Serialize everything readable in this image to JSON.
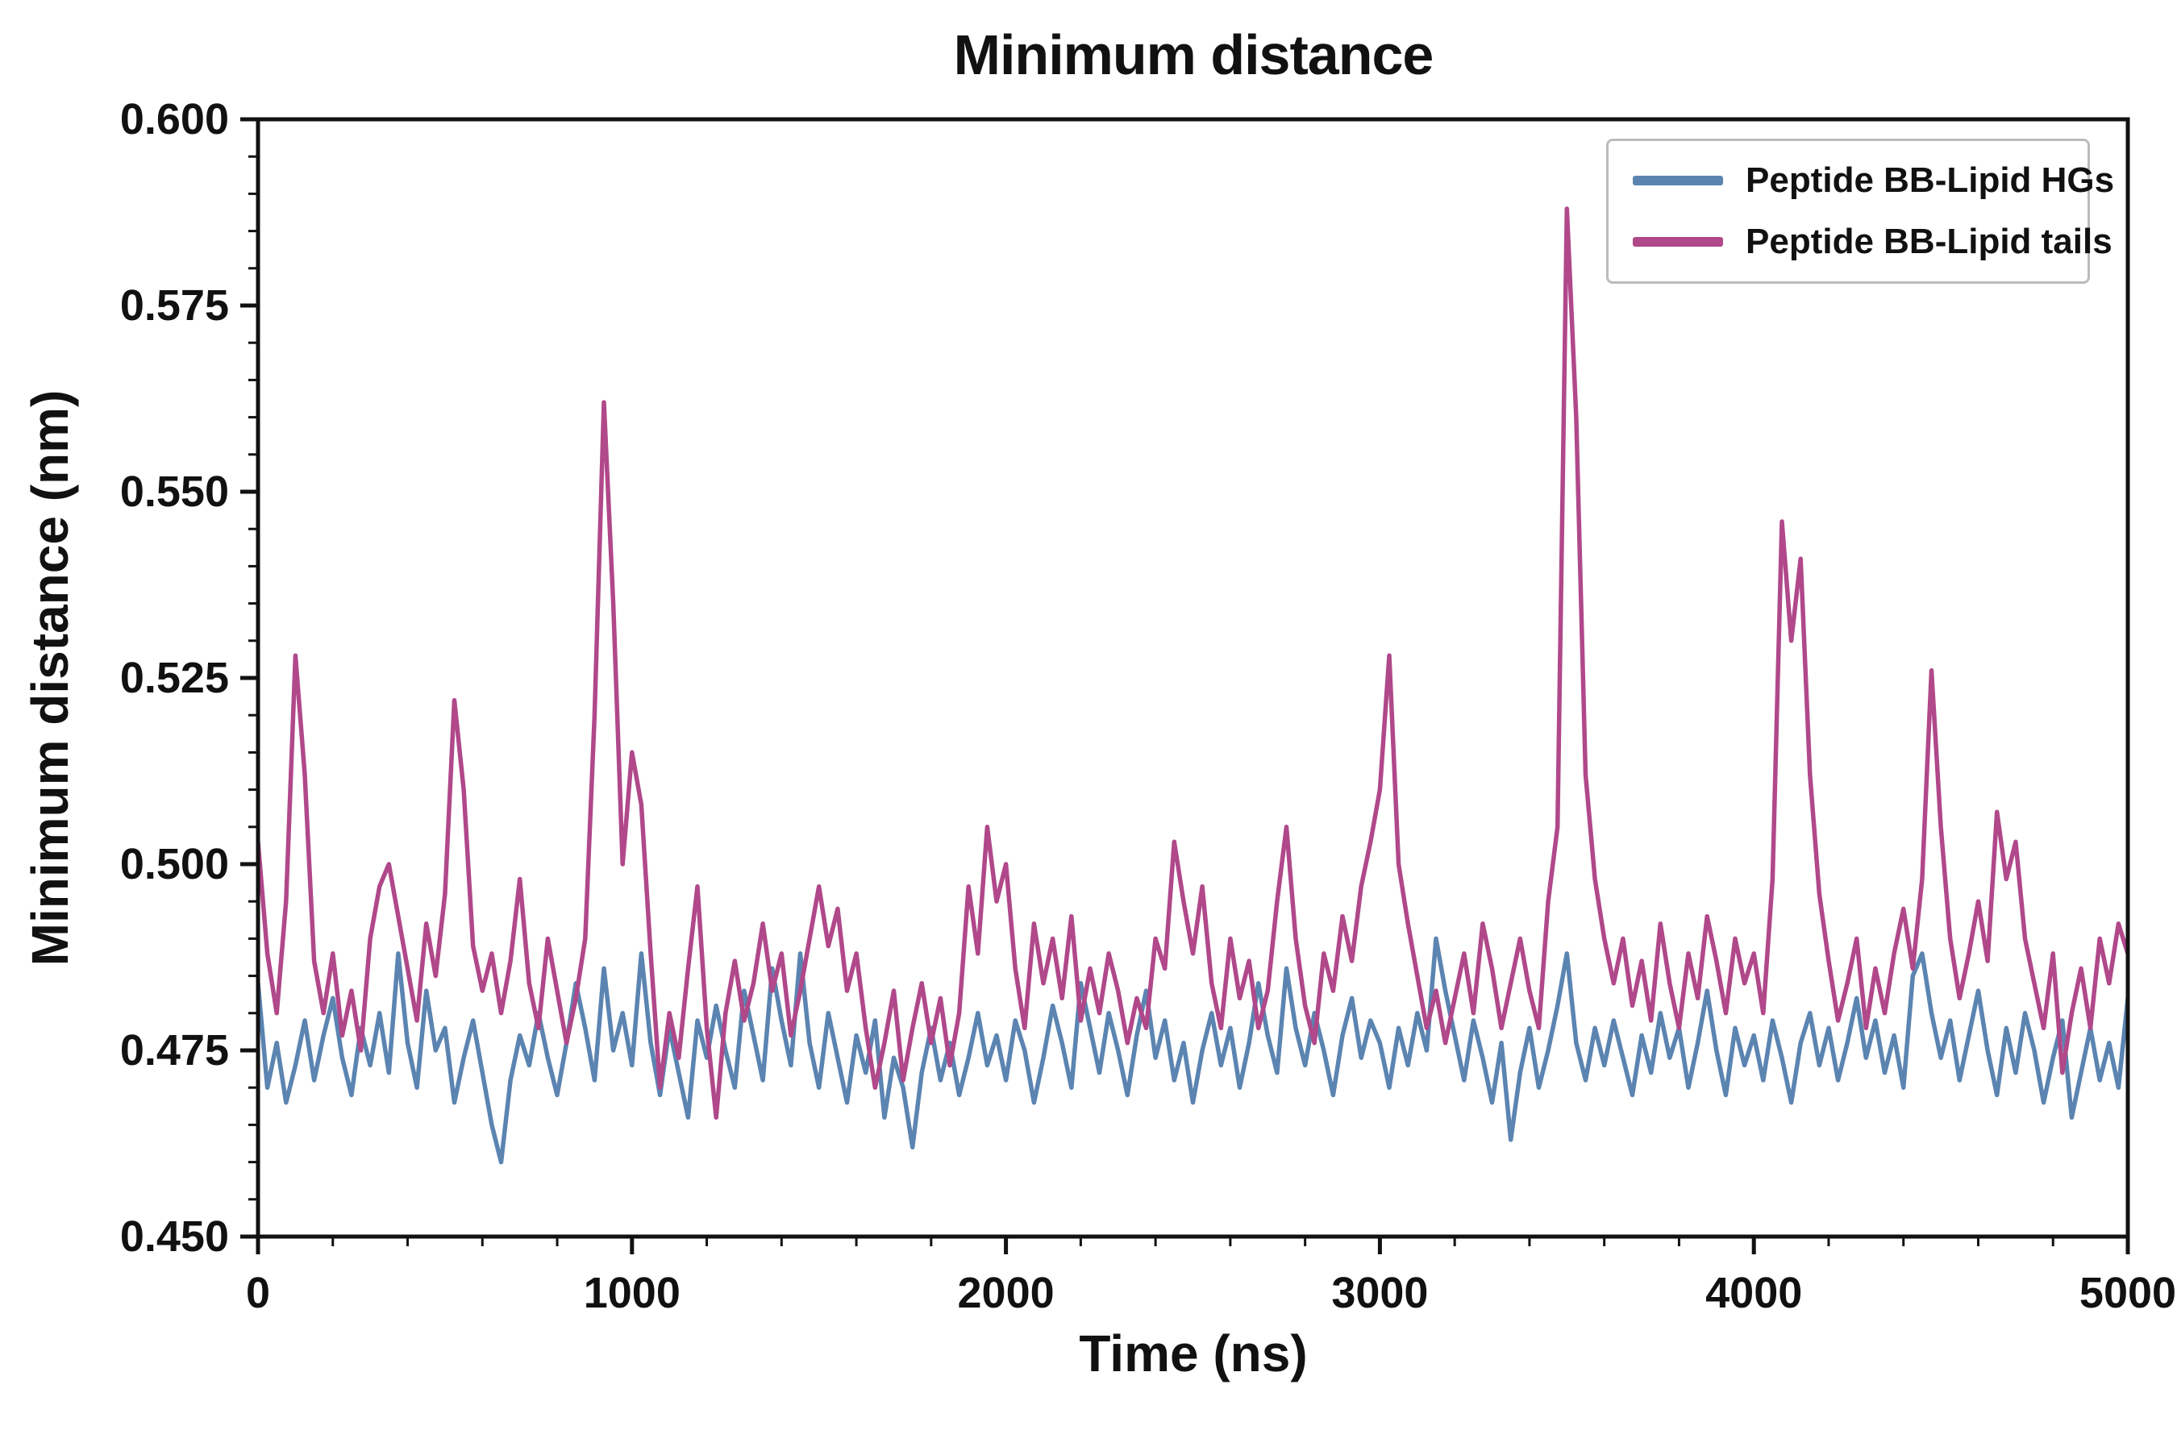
{
  "chart_data": {
    "type": "line",
    "title": "Minimum distance",
    "xlabel": "Time (ns)",
    "ylabel": "Minimum distance (nm)",
    "xlim": [
      0,
      5000
    ],
    "ylim": [
      0.45,
      0.6
    ],
    "x_ticks": [
      0,
      1000,
      2000,
      3000,
      4000,
      5000
    ],
    "x_tick_labels": [
      "0",
      "1000",
      "2000",
      "3000",
      "4000",
      "5000"
    ],
    "x_minor_step": 200,
    "y_ticks": [
      0.45,
      0.475,
      0.5,
      0.525,
      0.55,
      0.575,
      0.6
    ],
    "y_tick_labels": [
      "0.450",
      "0.475",
      "0.500",
      "0.525",
      "0.550",
      "0.575",
      "0.600"
    ],
    "y_minor_step": 0.005,
    "grid": false,
    "legend_position": "upper right",
    "x": {
      "start": 0,
      "step": 25,
      "count": 201
    },
    "series": [
      {
        "name": "Peptide BB-Lipid HGs",
        "color": "#5b84b1",
        "values": [
          0.484,
          0.47,
          0.476,
          0.468,
          0.473,
          0.479,
          0.471,
          0.477,
          0.482,
          0.474,
          0.469,
          0.478,
          0.473,
          0.48,
          0.472,
          0.488,
          0.476,
          0.47,
          0.483,
          0.475,
          0.478,
          0.468,
          0.474,
          0.479,
          0.472,
          0.465,
          0.46,
          0.471,
          0.477,
          0.473,
          0.48,
          0.474,
          0.469,
          0.476,
          0.484,
          0.478,
          0.471,
          0.486,
          0.475,
          0.48,
          0.473,
          0.488,
          0.476,
          0.469,
          0.478,
          0.472,
          0.466,
          0.479,
          0.474,
          0.481,
          0.475,
          0.47,
          0.483,
          0.477,
          0.471,
          0.486,
          0.479,
          0.473,
          0.488,
          0.476,
          0.47,
          0.48,
          0.474,
          0.468,
          0.477,
          0.472,
          0.479,
          0.466,
          0.474,
          0.47,
          0.462,
          0.472,
          0.478,
          0.471,
          0.476,
          0.469,
          0.474,
          0.48,
          0.473,
          0.477,
          0.471,
          0.479,
          0.475,
          0.468,
          0.474,
          0.481,
          0.476,
          0.47,
          0.484,
          0.478,
          0.472,
          0.48,
          0.475,
          0.469,
          0.477,
          0.483,
          0.474,
          0.479,
          0.471,
          0.476,
          0.468,
          0.475,
          0.48,
          0.473,
          0.478,
          0.47,
          0.476,
          0.484,
          0.477,
          0.472,
          0.486,
          0.478,
          0.473,
          0.48,
          0.475,
          0.469,
          0.477,
          0.482,
          0.474,
          0.479,
          0.476,
          0.47,
          0.478,
          0.473,
          0.48,
          0.475,
          0.49,
          0.483,
          0.477,
          0.471,
          0.479,
          0.474,
          0.468,
          0.476,
          0.463,
          0.472,
          0.478,
          0.47,
          0.475,
          0.481,
          0.488,
          0.476,
          0.471,
          0.478,
          0.473,
          0.479,
          0.474,
          0.469,
          0.477,
          0.472,
          0.48,
          0.474,
          0.478,
          0.47,
          0.476,
          0.483,
          0.475,
          0.469,
          0.478,
          0.473,
          0.477,
          0.471,
          0.479,
          0.474,
          0.468,
          0.476,
          0.48,
          0.473,
          0.478,
          0.471,
          0.476,
          0.482,
          0.474,
          0.479,
          0.472,
          0.477,
          0.47,
          0.485,
          0.488,
          0.48,
          0.474,
          0.479,
          0.471,
          0.477,
          0.483,
          0.475,
          0.469,
          0.478,
          0.472,
          0.48,
          0.475,
          0.468,
          0.474,
          0.479,
          0.466,
          0.472,
          0.478,
          0.471,
          0.476,
          0.47,
          0.482
        ]
      },
      {
        "name": "Peptide BB-Lipid tails",
        "color": "#b0488a",
        "values": [
          0.503,
          0.488,
          0.48,
          0.495,
          0.528,
          0.512,
          0.487,
          0.48,
          0.488,
          0.477,
          0.483,
          0.475,
          0.49,
          0.497,
          0.5,
          0.493,
          0.486,
          0.479,
          0.492,
          0.485,
          0.496,
          0.522,
          0.51,
          0.489,
          0.483,
          0.488,
          0.48,
          0.487,
          0.498,
          0.484,
          0.478,
          0.49,
          0.483,
          0.476,
          0.482,
          0.49,
          0.52,
          0.562,
          0.535,
          0.5,
          0.515,
          0.508,
          0.488,
          0.47,
          0.48,
          0.474,
          0.486,
          0.497,
          0.478,
          0.466,
          0.48,
          0.487,
          0.479,
          0.484,
          0.492,
          0.483,
          0.488,
          0.477,
          0.483,
          0.49,
          0.497,
          0.489,
          0.494,
          0.483,
          0.488,
          0.478,
          0.47,
          0.476,
          0.483,
          0.471,
          0.478,
          0.484,
          0.476,
          0.482,
          0.473,
          0.48,
          0.497,
          0.488,
          0.505,
          0.495,
          0.5,
          0.486,
          0.478,
          0.492,
          0.484,
          0.49,
          0.482,
          0.493,
          0.479,
          0.486,
          0.48,
          0.488,
          0.483,
          0.476,
          0.482,
          0.478,
          0.49,
          0.486,
          0.503,
          0.495,
          0.488,
          0.497,
          0.484,
          0.478,
          0.49,
          0.482,
          0.487,
          0.478,
          0.483,
          0.495,
          0.505,
          0.49,
          0.481,
          0.476,
          0.488,
          0.483,
          0.493,
          0.487,
          0.497,
          0.503,
          0.51,
          0.528,
          0.5,
          0.492,
          0.485,
          0.478,
          0.483,
          0.476,
          0.482,
          0.488,
          0.48,
          0.492,
          0.486,
          0.478,
          0.484,
          0.49,
          0.483,
          0.478,
          0.495,
          0.505,
          0.588,
          0.56,
          0.512,
          0.498,
          0.49,
          0.484,
          0.49,
          0.481,
          0.487,
          0.479,
          0.492,
          0.484,
          0.478,
          0.488,
          0.482,
          0.493,
          0.487,
          0.48,
          0.49,
          0.484,
          0.488,
          0.48,
          0.498,
          0.546,
          0.53,
          0.541,
          0.512,
          0.496,
          0.487,
          0.479,
          0.484,
          0.49,
          0.478,
          0.486,
          0.48,
          0.488,
          0.494,
          0.486,
          0.498,
          0.526,
          0.505,
          0.49,
          0.482,
          0.488,
          0.495,
          0.487,
          0.507,
          0.498,
          0.503,
          0.49,
          0.484,
          0.478,
          0.488,
          0.472,
          0.48,
          0.486,
          0.478,
          0.49,
          0.484,
          0.492,
          0.488
        ]
      }
    ]
  }
}
